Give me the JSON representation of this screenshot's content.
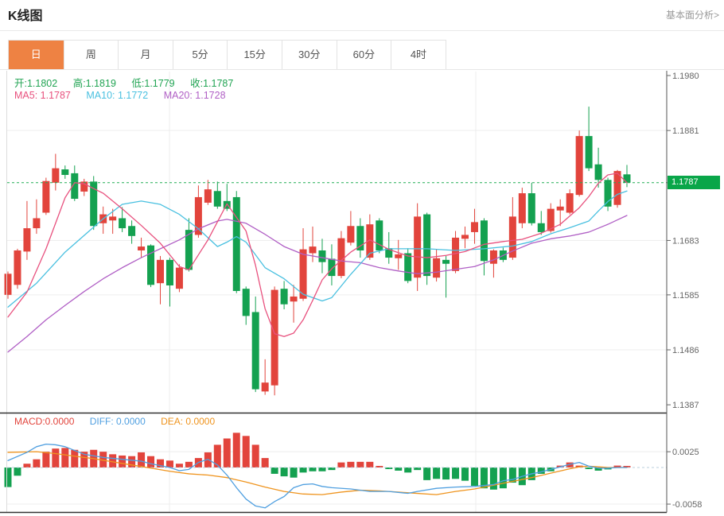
{
  "header": {
    "title": "K线图",
    "link": "基本面分析>"
  },
  "tabs": {
    "items": [
      "日",
      "周",
      "月",
      "5分",
      "15分",
      "30分",
      "60分",
      "4时"
    ],
    "active": "日"
  },
  "legend": {
    "ohlc": {
      "open": "开:1.1802",
      "high": "高:1.1819",
      "low": "低:1.1779",
      "close": "收:1.1787"
    },
    "ma": {
      "ma5": "MA5: 1.1787",
      "ma10": "MA10: 1.1772",
      "ma20": "MA20: 1.1728"
    },
    "macd": {
      "macd": "MACD:0.0000",
      "diff": "DIFF: 0.0000",
      "dea": "DEA: 0.0000"
    }
  },
  "price_tag": "1.1787",
  "colors": {
    "up": "#e2443c",
    "down": "#14a150",
    "ma5": "#e8517e",
    "ma10": "#49c0e0",
    "ma20": "#b05fc5",
    "diff": "#4f9fe0",
    "dea": "#ef941e",
    "active_tab": "#ee8243",
    "price_tag_bg": "#09a649",
    "current_price_line": "#22ad56",
    "grid": "#ededed",
    "axis_text": "#666"
  },
  "chart_data": {
    "type": "candlestick+macd",
    "legend_position": "top-left",
    "grid": true,
    "main_panel": {
      "ylabel": "",
      "y_ticks": [
        "1.1980",
        "1.1881",
        "1.1683",
        "1.1585",
        "1.1486",
        "1.1387"
      ],
      "y_tick_prices": [
        1.198,
        1.1881,
        1.1683,
        1.1585,
        1.1486,
        1.1387
      ],
      "grid_prices": [
        1.1881,
        1.1683,
        1.1585,
        1.1486
      ],
      "ylim": [
        1.138,
        1.199
      ],
      "current_price": 1.1787,
      "last_ohlc": {
        "open": 1.1802,
        "high": 1.1819,
        "low": 1.1779,
        "close": 1.1787
      },
      "ma_values": {
        "ma5": 1.1787,
        "ma10": 1.1772,
        "ma20": 1.1728
      },
      "candles": [
        [
          1.1585,
          1.1627,
          1.1578,
          1.1623
        ],
        [
          1.1603,
          1.1668,
          1.1596,
          1.1665
        ],
        [
          1.1663,
          1.1754,
          1.1648,
          1.1705
        ],
        [
          1.1705,
          1.1757,
          1.1695,
          1.1723
        ],
        [
          1.1733,
          1.1796,
          1.1729,
          1.179
        ],
        [
          1.1787,
          1.1839,
          1.1773,
          1.1813
        ],
        [
          1.1811,
          1.1818,
          1.1794,
          1.1801
        ],
        [
          1.1804,
          1.1818,
          1.1754,
          1.1758
        ],
        [
          1.1771,
          1.1794,
          1.1763,
          1.1789
        ],
        [
          1.1789,
          1.1799,
          1.1702,
          1.1709
        ],
        [
          1.1714,
          1.1744,
          1.1695,
          1.173
        ],
        [
          1.1719,
          1.174,
          1.1695,
          1.1726
        ],
        [
          1.1723,
          1.1743,
          1.1698,
          1.1705
        ],
        [
          1.1709,
          1.1719,
          1.1677,
          1.1691
        ],
        [
          1.1665,
          1.1688,
          1.1652,
          1.1672
        ],
        [
          1.1674,
          1.1676,
          1.1599,
          1.1603
        ],
        [
          1.1606,
          1.1655,
          1.1568,
          1.1648
        ],
        [
          1.1648,
          1.1652,
          1.1564,
          1.1602
        ],
        [
          1.1596,
          1.164,
          1.159,
          1.1634
        ],
        [
          1.1702,
          1.1723,
          1.1627,
          1.163
        ],
        [
          1.1693,
          1.1782,
          1.1688,
          1.1761
        ],
        [
          1.1751,
          1.1792,
          1.1747,
          1.1775
        ],
        [
          1.1772,
          1.1789,
          1.174,
          1.1744
        ],
        [
          1.1754,
          1.1785,
          1.1736,
          1.174
        ],
        [
          1.1761,
          1.1772,
          1.1588,
          1.1592
        ],
        [
          1.1596,
          1.16,
          1.1531,
          1.1547
        ],
        [
          1.1554,
          1.1582,
          1.141,
          1.1415
        ],
        [
          1.1411,
          1.1469,
          1.1405,
          1.1427
        ],
        [
          1.1422,
          1.16,
          1.1404,
          1.1594
        ],
        [
          1.1596,
          1.161,
          1.1559,
          1.1568
        ],
        [
          1.1573,
          1.1603,
          1.1535,
          1.1582
        ],
        [
          1.1578,
          1.1705,
          1.1574,
          1.1667
        ],
        [
          1.166,
          1.1708,
          1.1644,
          1.1672
        ],
        [
          1.1665,
          1.1686,
          1.1624,
          1.1644
        ],
        [
          1.165,
          1.1676,
          1.1602,
          1.1619
        ],
        [
          1.1619,
          1.17,
          1.1615,
          1.1687
        ],
        [
          1.1679,
          1.1736,
          1.1674,
          1.1709
        ],
        [
          1.1709,
          1.1723,
          1.1652,
          1.1665
        ],
        [
          1.1652,
          1.173,
          1.1648,
          1.1712
        ],
        [
          1.1719,
          1.1723,
          1.166,
          1.1665
        ],
        [
          1.1669,
          1.1698,
          1.1641,
          1.1652
        ],
        [
          1.1651,
          1.1684,
          1.163,
          1.1658
        ],
        [
          1.166,
          1.1669,
          1.1606,
          1.161
        ],
        [
          1.1616,
          1.175,
          1.1592,
          1.1726
        ],
        [
          1.173,
          1.1733,
          1.1603,
          1.1619
        ],
        [
          1.1616,
          1.1667,
          1.1609,
          1.1651
        ],
        [
          1.1648,
          1.1655,
          1.158,
          1.1641
        ],
        [
          1.1628,
          1.17,
          1.1624,
          1.1688
        ],
        [
          1.1686,
          1.1708,
          1.1669,
          1.1693
        ],
        [
          1.1698,
          1.174,
          1.1677,
          1.1716
        ],
        [
          1.1719,
          1.1723,
          1.162,
          1.1646
        ],
        [
          1.1641,
          1.1667,
          1.1616,
          1.1665
        ],
        [
          1.1665,
          1.167,
          1.1644,
          1.1648
        ],
        [
          1.1652,
          1.1761,
          1.1648,
          1.1726
        ],
        [
          1.1714,
          1.1778,
          1.1705,
          1.1768
        ],
        [
          1.1768,
          1.1787,
          1.171,
          1.1714
        ],
        [
          1.1714,
          1.1736,
          1.1693,
          1.1698
        ],
        [
          1.17,
          1.175,
          1.1697,
          1.174
        ],
        [
          1.1737,
          1.1757,
          1.1709,
          1.1744
        ],
        [
          1.1733,
          1.1775,
          1.173,
          1.1768
        ],
        [
          1.1765,
          1.1881,
          1.1762,
          1.1871
        ],
        [
          1.1871,
          1.1924,
          1.1808,
          1.1813
        ],
        [
          1.182,
          1.185,
          1.1778,
          1.1792
        ],
        [
          1.1792,
          1.1796,
          1.1736,
          1.1744
        ],
        [
          1.1747,
          1.181,
          1.1742,
          1.1808
        ],
        [
          1.1802,
          1.1819,
          1.1779,
          1.1787
        ]
      ],
      "ma5": [
        [
          0,
          1.1545
        ],
        [
          2,
          1.159
        ],
        [
          4,
          1.1668
        ],
        [
          6,
          1.176
        ],
        [
          7,
          1.1787
        ],
        [
          8,
          1.1785
        ],
        [
          10,
          1.1768
        ],
        [
          12,
          1.174
        ],
        [
          14,
          1.171
        ],
        [
          16,
          1.1678
        ],
        [
          18,
          1.1636
        ],
        [
          19,
          1.163
        ],
        [
          21,
          1.1684
        ],
        [
          23,
          1.1749
        ],
        [
          25,
          1.17
        ],
        [
          26,
          1.1638
        ],
        [
          27,
          1.156
        ],
        [
          28,
          1.1515
        ],
        [
          29,
          1.151
        ],
        [
          30,
          1.1516
        ],
        [
          31,
          1.154
        ],
        [
          32,
          1.1575
        ],
        [
          33,
          1.1612
        ],
        [
          34,
          1.1632
        ],
        [
          36,
          1.1662
        ],
        [
          38,
          1.1684
        ],
        [
          40,
          1.1667
        ],
        [
          42,
          1.1655
        ],
        [
          44,
          1.1652
        ],
        [
          46,
          1.1656
        ],
        [
          48,
          1.1663
        ],
        [
          50,
          1.1676
        ],
        [
          52,
          1.1681
        ],
        [
          54,
          1.1685
        ],
        [
          56,
          1.1696
        ],
        [
          58,
          1.1712
        ],
        [
          60,
          1.1742
        ],
        [
          61,
          1.1762
        ],
        [
          62,
          1.1786
        ],
        [
          63,
          1.1801
        ],
        [
          64,
          1.1804
        ],
        [
          65,
          1.1787
        ]
      ],
      "ma10": [
        [
          0,
          1.1563
        ],
        [
          3,
          1.1606
        ],
        [
          6,
          1.1662
        ],
        [
          8,
          1.1692
        ],
        [
          10,
          1.1722
        ],
        [
          12,
          1.1748
        ],
        [
          14,
          1.1754
        ],
        [
          16,
          1.1748
        ],
        [
          18,
          1.173
        ],
        [
          20,
          1.1704
        ],
        [
          22,
          1.1672
        ],
        [
          23,
          1.168
        ],
        [
          24,
          1.169
        ],
        [
          25,
          1.168
        ],
        [
          27,
          1.1634
        ],
        [
          29,
          1.1614
        ],
        [
          31,
          1.1586
        ],
        [
          33,
          1.1574
        ],
        [
          34,
          1.158
        ],
        [
          36,
          1.1622
        ],
        [
          38,
          1.166
        ],
        [
          40,
          1.1668
        ],
        [
          44,
          1.1668
        ],
        [
          47,
          1.1665
        ],
        [
          50,
          1.1668
        ],
        [
          53,
          1.1673
        ],
        [
          55,
          1.1681
        ],
        [
          57,
          1.1695
        ],
        [
          59,
          1.1706
        ],
        [
          61,
          1.1718
        ],
        [
          62,
          1.1736
        ],
        [
          63,
          1.1753
        ],
        [
          64,
          1.1766
        ],
        [
          65,
          1.1772
        ]
      ],
      "ma20": [
        [
          0,
          1.1482
        ],
        [
          2,
          1.151
        ],
        [
          4,
          1.154
        ],
        [
          6,
          1.1566
        ],
        [
          8,
          1.1591
        ],
        [
          10,
          1.1614
        ],
        [
          12,
          1.1634
        ],
        [
          14,
          1.1652
        ],
        [
          16,
          1.1668
        ],
        [
          18,
          1.1684
        ],
        [
          20,
          1.1704
        ],
        [
          22,
          1.1718
        ],
        [
          23,
          1.1721
        ],
        [
          25,
          1.1714
        ],
        [
          27,
          1.1694
        ],
        [
          29,
          1.1672
        ],
        [
          31,
          1.1658
        ],
        [
          33,
          1.1652
        ],
        [
          35,
          1.1646
        ],
        [
          37,
          1.1643
        ],
        [
          39,
          1.1634
        ],
        [
          41,
          1.1628
        ],
        [
          43,
          1.1623
        ],
        [
          45,
          1.1626
        ],
        [
          47,
          1.1631
        ],
        [
          49,
          1.1636
        ],
        [
          51,
          1.1648
        ],
        [
          53,
          1.1664
        ],
        [
          55,
          1.1678
        ],
        [
          57,
          1.1686
        ],
        [
          59,
          1.1691
        ],
        [
          61,
          1.1698
        ],
        [
          63,
          1.1712
        ],
        [
          64,
          1.172
        ],
        [
          65,
          1.1728
        ]
      ]
    },
    "macd_panel": {
      "y_ticks": [
        "0.0025",
        "-0.0058"
      ],
      "y_tick_values": [
        0.0025,
        -0.0058
      ],
      "zero_line": 0,
      "hist": [
        -0.0031,
        -0.0013,
        0.0006,
        0.0013,
        0.0025,
        0.003,
        0.0031,
        0.0028,
        0.0025,
        0.0028,
        0.0025,
        0.0021,
        0.0019,
        0.0018,
        0.0024,
        0.0018,
        0.0013,
        0.0011,
        0.0006,
        0.0009,
        0.0015,
        0.0024,
        0.0036,
        0.0046,
        0.0055,
        0.005,
        0.0036,
        0.0015,
        -0.001,
        -0.0014,
        -0.0016,
        -0.0008,
        -0.0006,
        -0.0006,
        -0.0004,
        0.0008,
        0.0009,
        0.0009,
        0.0009,
        0.0002,
        -0.0002,
        -0.0005,
        -0.0008,
        -0.0004,
        -0.002,
        -0.0018,
        -0.0019,
        -0.0018,
        -0.0021,
        -0.0029,
        -0.0033,
        -0.0035,
        -0.0033,
        -0.0024,
        -0.0028,
        -0.002,
        -0.001,
        -0.0006,
        0.0003,
        0.0008,
        0.0003,
        -0.0002,
        -0.0005,
        -0.0003,
        0.0003,
        0.0001
      ],
      "diff": [
        [
          0,
          0.0011
        ],
        [
          2,
          0.0024
        ],
        [
          3,
          0.0033
        ],
        [
          4,
          0.0037
        ],
        [
          5,
          0.0036
        ],
        [
          6,
          0.0033
        ],
        [
          8,
          0.0021
        ],
        [
          10,
          0.0016
        ],
        [
          12,
          0.0013
        ],
        [
          14,
          0.001
        ],
        [
          15,
          0.0006
        ],
        [
          16,
          0.0003
        ],
        [
          17,
          0.0
        ],
        [
          18,
          -0.0005
        ],
        [
          19,
          -0.0003
        ],
        [
          20,
          0.0008
        ],
        [
          21,
          0.0013
        ],
        [
          22,
          0.0004
        ],
        [
          23,
          -0.0012
        ],
        [
          24,
          -0.0032
        ],
        [
          25,
          -0.005
        ],
        [
          26,
          -0.0061
        ],
        [
          27,
          -0.0064
        ],
        [
          28,
          -0.0054
        ],
        [
          29,
          -0.0046
        ],
        [
          30,
          -0.0032
        ],
        [
          31,
          -0.0027
        ],
        [
          32,
          -0.0026
        ],
        [
          33,
          -0.003
        ],
        [
          34,
          -0.0032
        ],
        [
          36,
          -0.0034
        ],
        [
          38,
          -0.0038
        ],
        [
          40,
          -0.0038
        ],
        [
          42,
          -0.0041
        ],
        [
          43,
          -0.0038
        ],
        [
          45,
          -0.0033
        ],
        [
          47,
          -0.0031
        ],
        [
          49,
          -0.003
        ],
        [
          51,
          -0.0027
        ],
        [
          52,
          -0.0021
        ],
        [
          53,
          -0.0019
        ],
        [
          54,
          -0.0014
        ],
        [
          55,
          -0.001
        ],
        [
          56,
          -0.0007
        ],
        [
          57,
          -0.0003
        ],
        [
          58,
          0.0001
        ],
        [
          59,
          0.0005
        ],
        [
          60,
          0.0008
        ],
        [
          61,
          0.0002
        ],
        [
          62,
          -0.0001
        ],
        [
          63,
          -0.0001
        ],
        [
          64,
          0.0
        ],
        [
          65,
          0.0
        ]
      ],
      "dea": [
        [
          0,
          0.0024
        ],
        [
          3,
          0.0025
        ],
        [
          5,
          0.0022
        ],
        [
          7,
          0.0018
        ],
        [
          9,
          0.0014
        ],
        [
          11,
          0.0009
        ],
        [
          13,
          0.0004
        ],
        [
          15,
          -0.0001
        ],
        [
          17,
          -0.0006
        ],
        [
          19,
          -0.001
        ],
        [
          21,
          -0.0012
        ],
        [
          23,
          -0.0016
        ],
        [
          25,
          -0.0023
        ],
        [
          27,
          -0.0031
        ],
        [
          29,
          -0.0038
        ],
        [
          31,
          -0.0042
        ],
        [
          33,
          -0.0043
        ],
        [
          35,
          -0.0039
        ],
        [
          37,
          -0.0036
        ],
        [
          39,
          -0.0037
        ],
        [
          41,
          -0.0039
        ],
        [
          43,
          -0.0041
        ],
        [
          45,
          -0.0043
        ],
        [
          47,
          -0.0038
        ],
        [
          49,
          -0.0034
        ],
        [
          51,
          -0.0028
        ],
        [
          53,
          -0.0022
        ],
        [
          55,
          -0.0016
        ],
        [
          57,
          -0.0009
        ],
        [
          59,
          -0.0002
        ],
        [
          60,
          0.0001
        ],
        [
          61,
          0.0002
        ],
        [
          62,
          0.0001
        ],
        [
          63,
          0.0
        ],
        [
          64,
          0.0
        ],
        [
          65,
          0.0
        ]
      ]
    }
  }
}
